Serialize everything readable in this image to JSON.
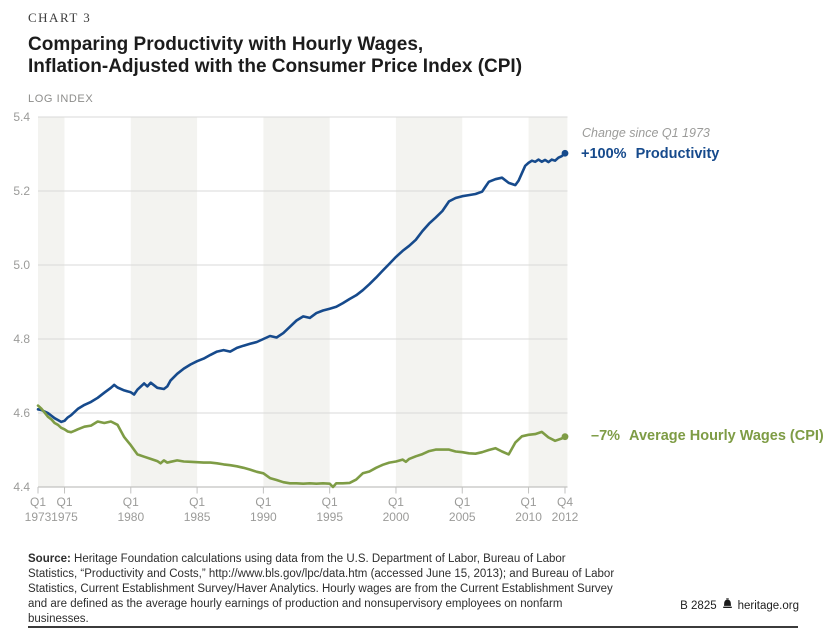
{
  "header": {
    "kicker": "CHART 3",
    "title_line1": "Comparing Productivity with Hourly Wages,",
    "title_line2": "Inflation-Adjusted with the Consumer Price Index (CPI)",
    "axis_unit_label": "LOG INDEX"
  },
  "annotations": {
    "change_note": "Change since Q1 1973",
    "productivity_value": "+100%",
    "productivity_label": "Productivity",
    "wages_value": "–7%",
    "wages_label": "Average Hourly Wages (CPI)"
  },
  "footer": {
    "source_label": "Source:",
    "source_text": " Heritage Foundation calculations using data from the U.S. Department of Labor, Bureau of Labor Statistics, “Productivity and Costs,” http://www.bls.gov/lpc/data.htm (accessed June 15, 2013); and Bureau of Labor Statistics, Current Establishment Survey/Haver Analytics. Hourly wages are from the Current Establishment Survey and are defined as the average hourly earnings of production and nonsupervisory employees on nonfarm businesses.",
    "doc_id": "B 2825",
    "site": "heritage.org"
  },
  "colors": {
    "productivity_blue": "#164a8c",
    "wages_green": "#7e9c45",
    "stripe": "#f3f3f0",
    "gridline": "#dadad8",
    "axis": "#c2c2c0",
    "tick_text": "#9b9b99"
  },
  "chart_data": {
    "type": "line",
    "title": "Comparing Productivity with Hourly Wages, Inflation-Adjusted with the Consumer Price Index (CPI)",
    "xlabel": "",
    "ylabel": "LOG INDEX",
    "ylim": [
      4.4,
      5.4
    ],
    "xlim": [
      1973.0,
      2012.75
    ],
    "grid": "horizontal gridlines at each y tick; alternating vertical background bands",
    "legend_position": "end-of-line labels at right",
    "y_ticks": [
      4.4,
      4.6,
      4.8,
      5.0,
      5.2,
      5.4
    ],
    "x_ticks": [
      {
        "quarter": "Q1",
        "year": "1973",
        "t": 1973.0
      },
      {
        "quarter": "Q1",
        "year": "1975",
        "t": 1975.0
      },
      {
        "quarter": "Q1",
        "year": "1980",
        "t": 1980.0
      },
      {
        "quarter": "Q1",
        "year": "1985",
        "t": 1985.0
      },
      {
        "quarter": "Q1",
        "year": "1990",
        "t": 1990.0
      },
      {
        "quarter": "Q1",
        "year": "1995",
        "t": 1995.0
      },
      {
        "quarter": "Q1",
        "year": "2000",
        "t": 2000.0
      },
      {
        "quarter": "Q1",
        "year": "2005",
        "t": 2005.0
      },
      {
        "quarter": "Q1",
        "year": "2010",
        "t": 2010.0
      },
      {
        "quarter": "Q4",
        "year": "2012",
        "t": 2012.75
      }
    ],
    "band_intervals": [
      [
        1973,
        1975
      ],
      [
        1980,
        1985
      ],
      [
        1990,
        1995
      ],
      [
        2000,
        2005
      ],
      [
        2010,
        2012.93
      ]
    ],
    "series": [
      {
        "name": "Productivity",
        "end_label": "+100% Productivity",
        "color": "#164a8c",
        "points": [
          [
            1973.0,
            4.61
          ],
          [
            1973.25,
            4.608
          ],
          [
            1973.5,
            4.604
          ],
          [
            1973.75,
            4.6
          ],
          [
            1974.0,
            4.593
          ],
          [
            1974.25,
            4.586
          ],
          [
            1974.5,
            4.581
          ],
          [
            1974.75,
            4.576
          ],
          [
            1975.0,
            4.579
          ],
          [
            1975.25,
            4.588
          ],
          [
            1975.5,
            4.594
          ],
          [
            1976.0,
            4.611
          ],
          [
            1976.5,
            4.622
          ],
          [
            1977.0,
            4.63
          ],
          [
            1977.5,
            4.641
          ],
          [
            1978.0,
            4.655
          ],
          [
            1978.5,
            4.668
          ],
          [
            1978.75,
            4.676
          ],
          [
            1979.0,
            4.669
          ],
          [
            1979.5,
            4.661
          ],
          [
            1980.0,
            4.656
          ],
          [
            1980.25,
            4.65
          ],
          [
            1980.5,
            4.663
          ],
          [
            1981.0,
            4.68
          ],
          [
            1981.25,
            4.672
          ],
          [
            1981.5,
            4.682
          ],
          [
            1982.0,
            4.668
          ],
          [
            1982.5,
            4.665
          ],
          [
            1982.75,
            4.672
          ],
          [
            1983.0,
            4.688
          ],
          [
            1983.5,
            4.706
          ],
          [
            1984.0,
            4.72
          ],
          [
            1984.5,
            4.731
          ],
          [
            1985.0,
            4.74
          ],
          [
            1985.5,
            4.747
          ],
          [
            1986.0,
            4.757
          ],
          [
            1986.5,
            4.766
          ],
          [
            1987.0,
            4.77
          ],
          [
            1987.5,
            4.766
          ],
          [
            1988.0,
            4.776
          ],
          [
            1988.5,
            4.782
          ],
          [
            1989.0,
            4.787
          ],
          [
            1989.5,
            4.792
          ],
          [
            1990.0,
            4.8
          ],
          [
            1990.5,
            4.808
          ],
          [
            1991.0,
            4.804
          ],
          [
            1991.5,
            4.816
          ],
          [
            1992.0,
            4.833
          ],
          [
            1992.5,
            4.85
          ],
          [
            1993.0,
            4.861
          ],
          [
            1993.5,
            4.857
          ],
          [
            1994.0,
            4.87
          ],
          [
            1994.5,
            4.877
          ],
          [
            1995.0,
            4.882
          ],
          [
            1995.5,
            4.887
          ],
          [
            1996.0,
            4.897
          ],
          [
            1996.5,
            4.908
          ],
          [
            1997.0,
            4.918
          ],
          [
            1997.5,
            4.932
          ],
          [
            1998.0,
            4.948
          ],
          [
            1998.5,
            4.966
          ],
          [
            1999.0,
            4.985
          ],
          [
            1999.5,
            5.003
          ],
          [
            2000.0,
            5.022
          ],
          [
            2000.5,
            5.038
          ],
          [
            2001.0,
            5.052
          ],
          [
            2001.5,
            5.068
          ],
          [
            2002.0,
            5.092
          ],
          [
            2002.5,
            5.112
          ],
          [
            2003.0,
            5.128
          ],
          [
            2003.5,
            5.146
          ],
          [
            2004.0,
            5.172
          ],
          [
            2004.5,
            5.181
          ],
          [
            2005.0,
            5.186
          ],
          [
            2005.5,
            5.189
          ],
          [
            2006.0,
            5.192
          ],
          [
            2006.5,
            5.198
          ],
          [
            2006.75,
            5.212
          ],
          [
            2007.0,
            5.225
          ],
          [
            2007.5,
            5.232
          ],
          [
            2008.0,
            5.236
          ],
          [
            2008.5,
            5.222
          ],
          [
            2009.0,
            5.216
          ],
          [
            2009.25,
            5.228
          ],
          [
            2009.5,
            5.248
          ],
          [
            2009.75,
            5.268
          ],
          [
            2010.0,
            5.276
          ],
          [
            2010.25,
            5.282
          ],
          [
            2010.5,
            5.279
          ],
          [
            2010.75,
            5.285
          ],
          [
            2011.0,
            5.279
          ],
          [
            2011.25,
            5.284
          ],
          [
            2011.5,
            5.278
          ],
          [
            2011.75,
            5.285
          ],
          [
            2012.0,
            5.282
          ],
          [
            2012.25,
            5.29
          ],
          [
            2012.5,
            5.294
          ],
          [
            2012.75,
            5.302
          ]
        ]
      },
      {
        "name": "Average Hourly Wages (CPI)",
        "end_label": "–7% Average Hourly Wages (CPI)",
        "color": "#7e9c45",
        "points": [
          [
            1973.0,
            4.62
          ],
          [
            1973.25,
            4.612
          ],
          [
            1973.5,
            4.601
          ],
          [
            1973.75,
            4.59
          ],
          [
            1974.0,
            4.583
          ],
          [
            1974.25,
            4.573
          ],
          [
            1974.5,
            4.568
          ],
          [
            1974.75,
            4.56
          ],
          [
            1975.0,
            4.556
          ],
          [
            1975.25,
            4.55
          ],
          [
            1975.5,
            4.548
          ],
          [
            1975.75,
            4.552
          ],
          [
            1976.0,
            4.556
          ],
          [
            1976.5,
            4.563
          ],
          [
            1977.0,
            4.566
          ],
          [
            1977.5,
            4.577
          ],
          [
            1978.0,
            4.573
          ],
          [
            1978.5,
            4.577
          ],
          [
            1979.0,
            4.568
          ],
          [
            1979.5,
            4.535
          ],
          [
            1980.0,
            4.513
          ],
          [
            1980.5,
            4.488
          ],
          [
            1981.0,
            4.482
          ],
          [
            1981.5,
            4.476
          ],
          [
            1982.0,
            4.47
          ],
          [
            1982.25,
            4.464
          ],
          [
            1982.5,
            4.472
          ],
          [
            1982.75,
            4.466
          ],
          [
            1983.0,
            4.468
          ],
          [
            1983.5,
            4.472
          ],
          [
            1984.0,
            4.469
          ],
          [
            1984.5,
            4.468
          ],
          [
            1985.0,
            4.467
          ],
          [
            1985.5,
            4.466
          ],
          [
            1986.0,
            4.466
          ],
          [
            1986.5,
            4.464
          ],
          [
            1987.0,
            4.461
          ],
          [
            1987.5,
            4.459
          ],
          [
            1988.0,
            4.456
          ],
          [
            1988.5,
            4.452
          ],
          [
            1989.0,
            4.447
          ],
          [
            1989.5,
            4.441
          ],
          [
            1990.0,
            4.437
          ],
          [
            1990.5,
            4.424
          ],
          [
            1991.0,
            4.419
          ],
          [
            1991.5,
            4.413
          ],
          [
            1992.0,
            4.41
          ],
          [
            1992.5,
            4.41
          ],
          [
            1993.0,
            4.409
          ],
          [
            1993.5,
            4.41
          ],
          [
            1994.0,
            4.409
          ],
          [
            1994.5,
            4.41
          ],
          [
            1995.0,
            4.409
          ],
          [
            1995.25,
            4.4
          ],
          [
            1995.5,
            4.41
          ],
          [
            1996.0,
            4.41
          ],
          [
            1996.5,
            4.411
          ],
          [
            1997.0,
            4.42
          ],
          [
            1997.5,
            4.437
          ],
          [
            1998.0,
            4.442
          ],
          [
            1998.5,
            4.452
          ],
          [
            1999.0,
            4.46
          ],
          [
            1999.5,
            4.466
          ],
          [
            2000.0,
            4.469
          ],
          [
            2000.5,
            4.474
          ],
          [
            2000.75,
            4.468
          ],
          [
            2001.0,
            4.476
          ],
          [
            2001.5,
            4.483
          ],
          [
            2002.0,
            4.489
          ],
          [
            2002.5,
            4.497
          ],
          [
            2003.0,
            4.501
          ],
          [
            2003.5,
            4.501
          ],
          [
            2004.0,
            4.501
          ],
          [
            2004.5,
            4.496
          ],
          [
            2005.0,
            4.494
          ],
          [
            2005.5,
            4.491
          ],
          [
            2006.0,
            4.49
          ],
          [
            2006.5,
            4.494
          ],
          [
            2007.0,
            4.5
          ],
          [
            2007.5,
            4.505
          ],
          [
            2008.0,
            4.496
          ],
          [
            2008.5,
            4.488
          ],
          [
            2009.0,
            4.52
          ],
          [
            2009.5,
            4.537
          ],
          [
            2010.0,
            4.541
          ],
          [
            2010.5,
            4.543
          ],
          [
            2011.0,
            4.549
          ],
          [
            2011.5,
            4.534
          ],
          [
            2012.0,
            4.525
          ],
          [
            2012.5,
            4.531
          ],
          [
            2012.75,
            4.536
          ]
        ]
      }
    ]
  }
}
